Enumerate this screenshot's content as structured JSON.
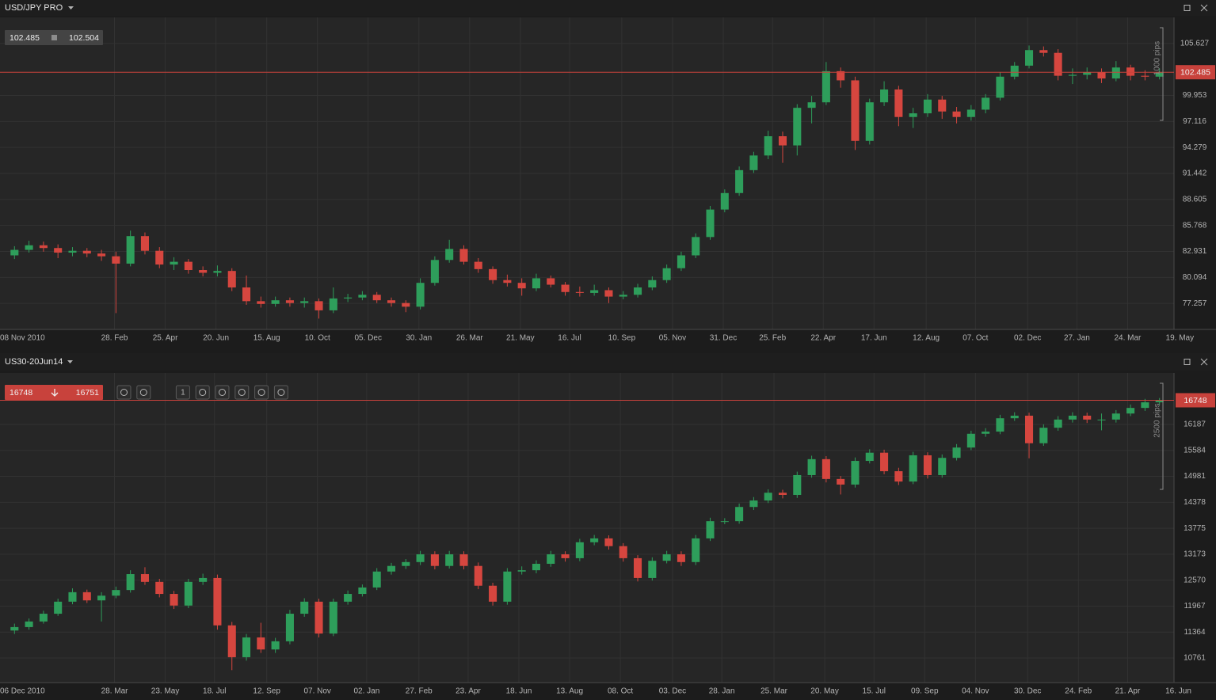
{
  "chart_data": [
    {
      "type": "candlestick",
      "title": "USD/JPY PRO",
      "bid": 102.485,
      "ask": 102.504,
      "range_label": "1000 pips",
      "up_color": "#2e9e5b",
      "down_color": "#d6463f",
      "grid": true,
      "ylim": [
        74.42,
        108.464
      ],
      "yticks": [
        77.257,
        80.094,
        82.931,
        85.768,
        88.605,
        91.442,
        94.279,
        97.116,
        99.953,
        105.627
      ],
      "xlim": [
        0,
        81
      ],
      "xticks": [
        {
          "value": 0,
          "label": "08 Nov 2010"
        },
        {
          "value": 7.9,
          "label": "28. Feb"
        },
        {
          "value": 11.4,
          "label": "25. Apr"
        },
        {
          "value": 14.9,
          "label": "20. Jun"
        },
        {
          "value": 18.4,
          "label": "15. Aug"
        },
        {
          "value": 21.9,
          "label": "10. Oct"
        },
        {
          "value": 25.4,
          "label": "05. Dec"
        },
        {
          "value": 28.9,
          "label": "30. Jan"
        },
        {
          "value": 32.4,
          "label": "26. Mar"
        },
        {
          "value": 35.9,
          "label": "21. May"
        },
        {
          "value": 39.3,
          "label": "16. Jul"
        },
        {
          "value": 42.9,
          "label": "10. Sep"
        },
        {
          "value": 46.4,
          "label": "05. Nov"
        },
        {
          "value": 49.9,
          "label": "31. Dec"
        },
        {
          "value": 53.3,
          "label": "25. Feb"
        },
        {
          "value": 56.8,
          "label": "22. Apr"
        },
        {
          "value": 60.3,
          "label": "17. Jun"
        },
        {
          "value": 63.9,
          "label": "12. Aug"
        },
        {
          "value": 67.3,
          "label": "07. Oct"
        },
        {
          "value": 70.9,
          "label": "02. Dec"
        },
        {
          "value": 74.3,
          "label": "27. Jan"
        },
        {
          "value": 77.8,
          "label": "24. Mar"
        },
        {
          "value": 81.4,
          "label": "19. May"
        }
      ],
      "ohlc": [
        [
          82.5,
          83.5,
          82.1,
          83.1
        ],
        [
          83.1,
          84.1,
          82.8,
          83.6
        ],
        [
          83.6,
          84.0,
          82.9,
          83.3
        ],
        [
          83.3,
          83.7,
          82.2,
          82.8
        ],
        [
          82.8,
          83.4,
          82.4,
          83.0
        ],
        [
          83.0,
          83.3,
          82.3,
          82.7
        ],
        [
          82.7,
          83.1,
          81.9,
          82.4
        ],
        [
          82.4,
          82.9,
          76.2,
          81.6
        ],
        [
          81.6,
          85.2,
          81.3,
          84.6
        ],
        [
          84.6,
          85.0,
          82.6,
          83.0
        ],
        [
          83.0,
          83.4,
          81.1,
          81.5
        ],
        [
          81.5,
          82.3,
          80.9,
          81.8
        ],
        [
          81.8,
          82.1,
          80.5,
          80.9
        ],
        [
          80.9,
          81.3,
          80.2,
          80.6
        ],
        [
          80.6,
          81.4,
          80.2,
          80.8
        ],
        [
          80.8,
          81.1,
          78.6,
          79.0
        ],
        [
          79.0,
          80.3,
          77.1,
          77.5
        ],
        [
          77.5,
          78.0,
          76.8,
          77.2
        ],
        [
          77.2,
          78.0,
          76.9,
          77.6
        ],
        [
          77.6,
          77.9,
          76.9,
          77.3
        ],
        [
          77.3,
          77.9,
          76.8,
          77.5
        ],
        [
          77.5,
          77.8,
          75.6,
          76.5
        ],
        [
          76.5,
          79.0,
          76.2,
          77.8
        ],
        [
          77.8,
          78.3,
          77.4,
          77.9
        ],
        [
          77.9,
          78.6,
          77.6,
          78.2
        ],
        [
          78.2,
          78.5,
          77.3,
          77.6
        ],
        [
          77.6,
          77.9,
          76.9,
          77.3
        ],
        [
          77.3,
          77.6,
          76.3,
          76.9
        ],
        [
          76.9,
          80.0,
          76.6,
          79.5
        ],
        [
          79.5,
          82.4,
          79.2,
          82.0
        ],
        [
          82.0,
          84.2,
          81.7,
          83.2
        ],
        [
          83.2,
          83.6,
          81.5,
          81.8
        ],
        [
          81.8,
          82.2,
          80.6,
          81.0
        ],
        [
          81.0,
          81.3,
          79.4,
          79.8
        ],
        [
          79.8,
          80.4,
          79.1,
          79.5
        ],
        [
          79.5,
          80.0,
          78.1,
          78.9
        ],
        [
          78.9,
          80.5,
          78.6,
          80.0
        ],
        [
          80.0,
          80.3,
          79.0,
          79.3
        ],
        [
          79.3,
          79.6,
          78.1,
          78.5
        ],
        [
          78.5,
          79.1,
          78.0,
          78.4
        ],
        [
          78.4,
          79.3,
          78.1,
          78.7
        ],
        [
          78.7,
          79.0,
          77.3,
          78.0
        ],
        [
          78.0,
          78.6,
          77.7,
          78.2
        ],
        [
          78.2,
          79.4,
          77.9,
          79.0
        ],
        [
          79.0,
          80.2,
          78.7,
          79.8
        ],
        [
          79.8,
          81.5,
          79.5,
          81.1
        ],
        [
          81.1,
          82.9,
          80.8,
          82.5
        ],
        [
          82.5,
          84.9,
          82.2,
          84.5
        ],
        [
          84.5,
          87.9,
          84.2,
          87.5
        ],
        [
          87.5,
          89.7,
          87.2,
          89.3
        ],
        [
          89.3,
          92.2,
          89.0,
          91.8
        ],
        [
          91.8,
          93.8,
          91.5,
          93.4
        ],
        [
          93.4,
          96.1,
          93.0,
          95.5
        ],
        [
          95.5,
          96.0,
          92.6,
          94.5
        ],
        [
          94.5,
          99.0,
          93.4,
          98.6
        ],
        [
          98.6,
          99.9,
          96.9,
          99.2
        ],
        [
          99.2,
          103.6,
          98.9,
          102.6
        ],
        [
          102.6,
          103.0,
          100.8,
          101.6
        ],
        [
          101.6,
          102.0,
          94.0,
          95.0
        ],
        [
          95.0,
          99.6,
          94.6,
          99.2
        ],
        [
          99.2,
          101.5,
          98.8,
          100.6
        ],
        [
          100.6,
          101.0,
          96.6,
          97.6
        ],
        [
          97.6,
          98.6,
          96.4,
          98.0
        ],
        [
          98.0,
          100.1,
          97.6,
          99.5
        ],
        [
          99.5,
          99.9,
          97.4,
          98.2
        ],
        [
          98.2,
          98.7,
          96.9,
          97.6
        ],
        [
          97.6,
          98.9,
          97.2,
          98.4
        ],
        [
          98.4,
          100.1,
          98.0,
          99.7
        ],
        [
          99.7,
          102.5,
          99.4,
          102.0
        ],
        [
          102.0,
          103.6,
          101.7,
          103.2
        ],
        [
          103.2,
          105.4,
          102.9,
          104.9
        ],
        [
          104.9,
          105.3,
          104.2,
          104.6
        ],
        [
          104.6,
          105.0,
          101.6,
          102.1
        ],
        [
          102.1,
          102.9,
          101.2,
          102.2
        ],
        [
          102.2,
          103.0,
          101.7,
          102.5
        ],
        [
          102.5,
          102.9,
          101.3,
          101.8
        ],
        [
          101.8,
          103.7,
          101.5,
          103.0
        ],
        [
          103.0,
          103.3,
          101.6,
          102.1
        ],
        [
          102.1,
          102.7,
          101.6,
          102.0
        ],
        [
          102.0,
          102.9,
          101.7,
          102.485
        ]
      ]
    },
    {
      "type": "candlestick",
      "title": "US30-20Jun14",
      "bid": 16748,
      "ask": 16751,
      "range_label": "2500 pips",
      "toolbar_interval": "1",
      "up_color": "#2e9e5b",
      "down_color": "#d6463f",
      "grid": true,
      "ylim": [
        10191,
        17382
      ],
      "yticks": [
        10761,
        11364,
        11967,
        12570,
        13173,
        13775,
        14378,
        14981,
        15584,
        16187
      ],
      "xlim": [
        0,
        81
      ],
      "xticks": [
        {
          "value": 0,
          "label": "06 Dec 2010"
        },
        {
          "value": 7.9,
          "label": "28. Mar"
        },
        {
          "value": 11.4,
          "label": "23. May"
        },
        {
          "value": 14.8,
          "label": "18. Jul"
        },
        {
          "value": 18.4,
          "label": "12. Sep"
        },
        {
          "value": 21.9,
          "label": "07. Nov"
        },
        {
          "value": 25.3,
          "label": "02. Jan"
        },
        {
          "value": 28.9,
          "label": "27. Feb"
        },
        {
          "value": 32.3,
          "label": "23. Apr"
        },
        {
          "value": 35.8,
          "label": "18. Jun"
        },
        {
          "value": 39.3,
          "label": "13. Aug"
        },
        {
          "value": 42.8,
          "label": "08. Oct"
        },
        {
          "value": 46.4,
          "label": "03. Dec"
        },
        {
          "value": 49.8,
          "label": "28. Jan"
        },
        {
          "value": 53.4,
          "label": "25. Mar"
        },
        {
          "value": 56.9,
          "label": "20. May"
        },
        {
          "value": 60.3,
          "label": "15. Jul"
        },
        {
          "value": 63.8,
          "label": "09. Sep"
        },
        {
          "value": 67.3,
          "label": "04. Nov"
        },
        {
          "value": 70.9,
          "label": "30. Dec"
        },
        {
          "value": 74.4,
          "label": "24. Feb"
        },
        {
          "value": 77.8,
          "label": "21. Apr"
        },
        {
          "value": 81.3,
          "label": "16. Jun"
        }
      ],
      "ohlc": [
        [
          11400,
          11560,
          11320,
          11480
        ],
        [
          11480,
          11680,
          11420,
          11610
        ],
        [
          11610,
          11860,
          11560,
          11790
        ],
        [
          11790,
          12140,
          11740,
          12070
        ],
        [
          12070,
          12380,
          12010,
          12290
        ],
        [
          12290,
          12350,
          12040,
          12100
        ],
        [
          12100,
          12290,
          11610,
          12210
        ],
        [
          12210,
          12420,
          12150,
          12340
        ],
        [
          12340,
          12800,
          12280,
          12710
        ],
        [
          12710,
          12870,
          12460,
          12530
        ],
        [
          12530,
          12600,
          12170,
          12250
        ],
        [
          12250,
          12320,
          11900,
          11980
        ],
        [
          11980,
          12600,
          11920,
          12530
        ],
        [
          12530,
          12720,
          12460,
          12620
        ],
        [
          12620,
          12700,
          11420,
          11520
        ],
        [
          11520,
          11600,
          10480,
          10780
        ],
        [
          10780,
          11320,
          10700,
          11240
        ],
        [
          11240,
          11580,
          10880,
          10960
        ],
        [
          10960,
          11230,
          10880,
          11150
        ],
        [
          11150,
          11880,
          11080,
          11790
        ],
        [
          11790,
          12150,
          11720,
          12070
        ],
        [
          12070,
          12140,
          11240,
          11330
        ],
        [
          11330,
          12140,
          11270,
          12070
        ],
        [
          12070,
          12330,
          12000,
          12250
        ],
        [
          12250,
          12470,
          12190,
          12400
        ],
        [
          12400,
          12850,
          12340,
          12770
        ],
        [
          12770,
          12970,
          12700,
          12900
        ],
        [
          12900,
          13060,
          12830,
          12990
        ],
        [
          12990,
          13250,
          12920,
          13170
        ],
        [
          13170,
          13240,
          12820,
          12900
        ],
        [
          12900,
          13250,
          12840,
          13170
        ],
        [
          13170,
          13240,
          12820,
          12900
        ],
        [
          12900,
          12980,
          12360,
          12440
        ],
        [
          12440,
          12510,
          11980,
          12070
        ],
        [
          12070,
          12850,
          12000,
          12770
        ],
        [
          12770,
          12890,
          12700,
          12800
        ],
        [
          12800,
          13030,
          12730,
          12950
        ],
        [
          12950,
          13250,
          12880,
          13170
        ],
        [
          13170,
          13240,
          13000,
          13080
        ],
        [
          13080,
          13530,
          13010,
          13450
        ],
        [
          13450,
          13620,
          13380,
          13540
        ],
        [
          13540,
          13610,
          13280,
          13360
        ],
        [
          13360,
          13430,
          13000,
          13080
        ],
        [
          13080,
          13150,
          12540,
          12620
        ],
        [
          12620,
          13100,
          12560,
          13020
        ],
        [
          13020,
          13250,
          12960,
          13170
        ],
        [
          13170,
          13240,
          12900,
          12990
        ],
        [
          12990,
          13620,
          12920,
          13540
        ],
        [
          13540,
          14020,
          13480,
          13940
        ],
        [
          13940,
          14010,
          13870,
          13940
        ],
        [
          13940,
          14350,
          13880,
          14270
        ],
        [
          14270,
          14500,
          14200,
          14420
        ],
        [
          14420,
          14680,
          14360,
          14600
        ],
        [
          14600,
          14670,
          14470,
          14550
        ],
        [
          14550,
          15090,
          14480,
          15010
        ],
        [
          15010,
          15460,
          14950,
          15380
        ],
        [
          15380,
          15450,
          14840,
          14920
        ],
        [
          14920,
          14990,
          14560,
          14790
        ],
        [
          14790,
          15420,
          14720,
          15340
        ],
        [
          15340,
          15610,
          15280,
          15530
        ],
        [
          15530,
          15600,
          15030,
          15100
        ],
        [
          15100,
          15180,
          14780,
          14860
        ],
        [
          14860,
          15550,
          14800,
          15470
        ],
        [
          15470,
          15540,
          14930,
          15010
        ],
        [
          15010,
          15490,
          14950,
          15410
        ],
        [
          15410,
          15730,
          15350,
          15650
        ],
        [
          15650,
          16040,
          15590,
          15970
        ],
        [
          15970,
          16100,
          15900,
          16020
        ],
        [
          16020,
          16410,
          15960,
          16330
        ],
        [
          16330,
          16470,
          16270,
          16390
        ],
        [
          16390,
          16460,
          15400,
          15750
        ],
        [
          15750,
          16190,
          15690,
          16110
        ],
        [
          16110,
          16380,
          16040,
          16300
        ],
        [
          16300,
          16470,
          16230,
          16390
        ],
        [
          16390,
          16460,
          16220,
          16300
        ],
        [
          16300,
          16440,
          16050,
          16300
        ],
        [
          16300,
          16520,
          16230,
          16440
        ],
        [
          16440,
          16650,
          16380,
          16570
        ],
        [
          16570,
          16780,
          16500,
          16700
        ],
        [
          16700,
          16800,
          16640,
          16748
        ]
      ]
    }
  ]
}
